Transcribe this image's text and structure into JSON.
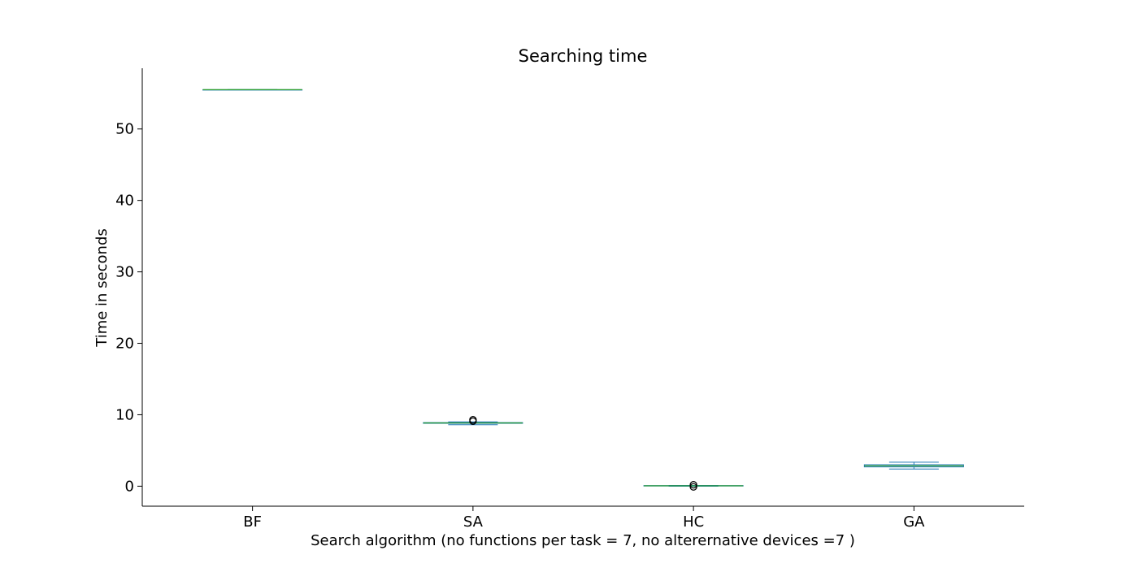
{
  "chart_data": {
    "type": "box",
    "title": "Searching time",
    "xlabel": "Search algorithm (no functions per task = 7, no alterernative devices =7 )",
    "ylabel": "Time in seconds",
    "ylim": [
      -2.8,
      58.5
    ],
    "yticks": [
      0,
      10,
      20,
      30,
      40,
      50
    ],
    "grid": false,
    "categories": [
      "BF",
      "SA",
      "HC",
      "GA"
    ],
    "boxes": [
      {
        "category": "BF",
        "whisker_low": 55.5,
        "q1": 55.5,
        "median": 55.5,
        "q3": 55.5,
        "whisker_high": 55.5,
        "outliers": []
      },
      {
        "category": "SA",
        "whisker_low": 8.6,
        "q1": 8.8,
        "median": 8.85,
        "q3": 8.9,
        "whisker_high": 9.0,
        "outliers": [
          9.1,
          9.3
        ]
      },
      {
        "category": "HC",
        "whisker_low": 0.0,
        "q1": 0.05,
        "median": 0.05,
        "q3": 0.08,
        "whisker_high": 0.1,
        "outliers": [
          -0.1,
          0.2
        ]
      },
      {
        "category": "GA",
        "whisker_low": 2.4,
        "q1": 2.7,
        "median": 2.85,
        "q3": 3.0,
        "whisker_high": 3.35,
        "outliers": []
      }
    ],
    "colors": {
      "box": "#1f77b4",
      "median": "#2ca02c",
      "whisker": "#1f77b4",
      "outlier": "#000000",
      "axis": "#000000"
    }
  }
}
